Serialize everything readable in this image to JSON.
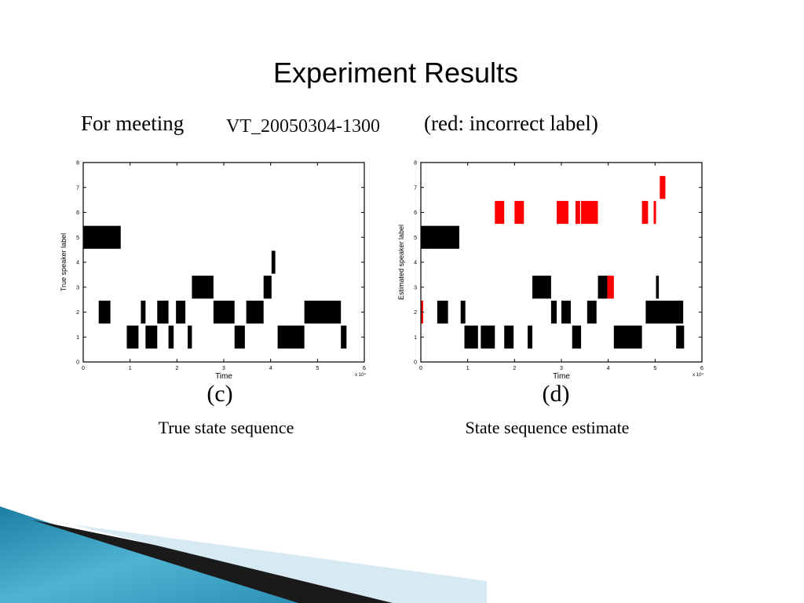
{
  "slide": {
    "title": "Experiment Results",
    "subtitle_prefix": "For meeting",
    "meeting_id": "VT_20050304-1300",
    "note": "(red: incorrect label)"
  },
  "colors": {
    "correct": "#000000",
    "incorrect": "#ff0000"
  },
  "chart_data": [
    {
      "type": "scatter",
      "panel_label": "(c)",
      "caption": "True state sequence",
      "xlabel": "Time",
      "ylabel": "True speaker label",
      "x_multiplier": "x 10⁴",
      "xlim": [
        0,
        6
      ],
      "ylim": [
        0,
        8
      ],
      "x_ticks": [
        "0",
        "1",
        "2",
        "3",
        "4",
        "5",
        "6"
      ],
      "y_ticks": [
        "0",
        "1",
        "2",
        "3",
        "4",
        "5",
        "6",
        "7",
        "8"
      ],
      "segments": [
        {
          "label": 5,
          "start": 0.0,
          "end": 0.8,
          "correct": true
        },
        {
          "label": 2,
          "start": 0.33,
          "end": 0.58,
          "correct": true
        },
        {
          "label": 1,
          "start": 0.93,
          "end": 1.18,
          "correct": true
        },
        {
          "label": 2,
          "start": 1.23,
          "end": 1.33,
          "correct": true
        },
        {
          "label": 1,
          "start": 1.33,
          "end": 1.58,
          "correct": true
        },
        {
          "label": 2,
          "start": 1.58,
          "end": 1.82,
          "correct": true
        },
        {
          "label": 1,
          "start": 1.82,
          "end": 1.93,
          "correct": true
        },
        {
          "label": 2,
          "start": 1.98,
          "end": 2.18,
          "correct": true
        },
        {
          "label": 1,
          "start": 2.23,
          "end": 2.32,
          "correct": true
        },
        {
          "label": 3,
          "start": 2.32,
          "end": 2.78,
          "correct": true
        },
        {
          "label": 2,
          "start": 2.78,
          "end": 3.23,
          "correct": true
        },
        {
          "label": 1,
          "start": 3.23,
          "end": 3.45,
          "correct": true
        },
        {
          "label": 2,
          "start": 3.48,
          "end": 3.85,
          "correct": true
        },
        {
          "label": 3,
          "start": 3.85,
          "end": 4.02,
          "correct": true
        },
        {
          "label": 4,
          "start": 4.02,
          "end": 4.1,
          "correct": true
        },
        {
          "label": 1,
          "start": 4.15,
          "end": 4.72,
          "correct": true
        },
        {
          "label": 2,
          "start": 4.72,
          "end": 5.5,
          "correct": true
        },
        {
          "label": 1,
          "start": 5.5,
          "end": 5.62,
          "correct": true
        }
      ]
    },
    {
      "type": "scatter",
      "panel_label": "(d)",
      "caption": "State sequence estimate",
      "xlabel": "Time",
      "ylabel": "Estimated speaker label",
      "x_multiplier": "x 10⁴",
      "xlim": [
        0,
        6
      ],
      "ylim": [
        0,
        8
      ],
      "x_ticks": [
        "0",
        "1",
        "2",
        "3",
        "4",
        "5",
        "6"
      ],
      "y_ticks": [
        "0",
        "1",
        "2",
        "3",
        "4",
        "5",
        "6",
        "7",
        "8"
      ],
      "segments": [
        {
          "label": 5,
          "start": 0.0,
          "end": 0.82,
          "correct": true
        },
        {
          "label": 2,
          "start": 0.0,
          "end": 0.05,
          "correct": false
        },
        {
          "label": 2,
          "start": 0.35,
          "end": 0.58,
          "correct": true
        },
        {
          "label": 1,
          "start": 0.93,
          "end": 1.22,
          "correct": true
        },
        {
          "label": 2,
          "start": 0.85,
          "end": 0.95,
          "correct": true
        },
        {
          "label": 1,
          "start": 1.28,
          "end": 1.58,
          "correct": true
        },
        {
          "label": 6,
          "start": 1.58,
          "end": 1.78,
          "correct": false
        },
        {
          "label": 1,
          "start": 1.78,
          "end": 1.98,
          "correct": true
        },
        {
          "label": 6,
          "start": 2.0,
          "end": 2.2,
          "correct": false
        },
        {
          "label": 1,
          "start": 2.28,
          "end": 2.38,
          "correct": true
        },
        {
          "label": 3,
          "start": 2.38,
          "end": 2.78,
          "correct": true
        },
        {
          "label": 2,
          "start": 2.78,
          "end": 2.9,
          "correct": true
        },
        {
          "label": 6,
          "start": 2.9,
          "end": 3.15,
          "correct": false
        },
        {
          "label": 2,
          "start": 3.0,
          "end": 3.2,
          "correct": true
        },
        {
          "label": 1,
          "start": 3.23,
          "end": 3.42,
          "correct": true
        },
        {
          "label": 6,
          "start": 3.3,
          "end": 3.4,
          "correct": false
        },
        {
          "label": 6,
          "start": 3.42,
          "end": 3.78,
          "correct": false
        },
        {
          "label": 2,
          "start": 3.55,
          "end": 3.75,
          "correct": true
        },
        {
          "label": 3,
          "start": 3.78,
          "end": 3.98,
          "correct": true
        },
        {
          "label": 3,
          "start": 3.98,
          "end": 4.12,
          "correct": false
        },
        {
          "label": 1,
          "start": 4.12,
          "end": 4.72,
          "correct": true
        },
        {
          "label": 6,
          "start": 4.72,
          "end": 4.85,
          "correct": false
        },
        {
          "label": 6,
          "start": 4.97,
          "end": 5.02,
          "correct": false
        },
        {
          "label": 2,
          "start": 4.8,
          "end": 5.6,
          "correct": true
        },
        {
          "label": 7,
          "start": 5.1,
          "end": 5.22,
          "correct": false
        },
        {
          "label": 3,
          "start": 5.02,
          "end": 5.08,
          "correct": true
        },
        {
          "label": 1,
          "start": 5.45,
          "end": 5.62,
          "correct": true
        }
      ]
    }
  ]
}
